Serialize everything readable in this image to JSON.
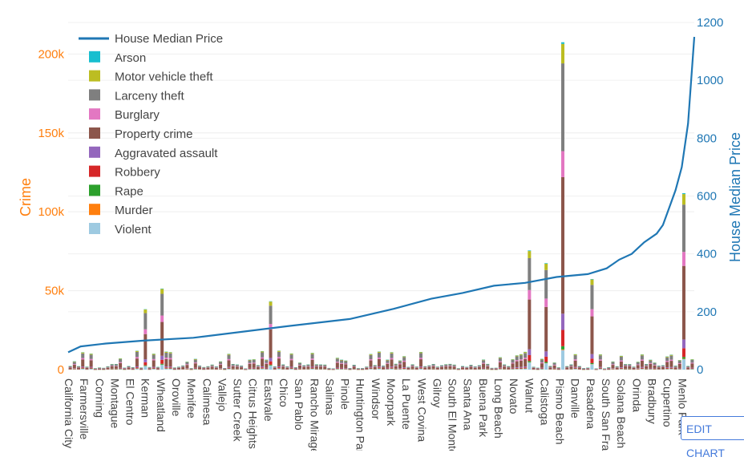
{
  "chart_data": {
    "type": "bar",
    "barmode": "stack",
    "left_axis": {
      "label": "Crime",
      "range": [
        0,
        220000
      ],
      "ticks": [
        0,
        50000,
        100000,
        150000,
        200000
      ],
      "tick_labels": [
        "0",
        "50k",
        "100k",
        "150k",
        "200k"
      ],
      "color": "#ff7f0e"
    },
    "right_axis": {
      "label": "House Median Price",
      "range": [
        0,
        1200
      ],
      "ticks": [
        0,
        200,
        400,
        600,
        800,
        1000,
        1200
      ],
      "tick_labels": [
        "0",
        "200",
        "400",
        "600",
        "800",
        "1000",
        "1200"
      ],
      "color": "#1f77b4"
    },
    "x_tick_labels": [
      "California City",
      "Farmersville",
      "Corning",
      "Montague",
      "El Centro",
      "Kerman",
      "Wheatland",
      "Oroville",
      "Menifee",
      "Calimesa",
      "Vallejo",
      "Sutter Creek",
      "Citrus Heights",
      "Eastvale",
      "Chico",
      "San Pablo",
      "Rancho Mirage",
      "Salinas",
      "Pinole",
      "Huntington Park",
      "Windsor",
      "Moorpark",
      "La Puente",
      "West Covina",
      "Gilroy",
      "South El Monte",
      "Santa Ana",
      "Buena Park",
      "Long Beach",
      "Novato",
      "Walnut",
      "Calistoga",
      "Pismo Beach",
      "Danville",
      "Pasadena",
      "South San Francisco",
      "Solana Beach",
      "Orinda",
      "Bradbury",
      "Cupertino",
      "Menlo Park"
    ],
    "legend_position": "top-left",
    "grid": true,
    "series": [
      {
        "name": "House Median Price",
        "kind": "line",
        "axis": "right",
        "color": "#1f77b4"
      },
      {
        "name": "Arson",
        "kind": "bar",
        "color": "#17becf"
      },
      {
        "name": "Motor vehicle theft",
        "kind": "bar",
        "color": "#bcbd22"
      },
      {
        "name": "Larceny theft",
        "kind": "bar",
        "color": "#7f7f7f"
      },
      {
        "name": "Burglary",
        "kind": "bar",
        "color": "#e377c2"
      },
      {
        "name": "Property crime",
        "kind": "bar",
        "color": "#8c564b"
      },
      {
        "name": "Aggravated assault",
        "kind": "bar",
        "color": "#9467bd"
      },
      {
        "name": "Robbery",
        "kind": "bar",
        "color": "#d62728"
      },
      {
        "name": "Rape",
        "kind": "bar",
        "color": "#2ca02c"
      },
      {
        "name": "Murder",
        "kind": "bar",
        "color": "#ff7f0e"
      },
      {
        "name": "Violent",
        "kind": "bar",
        "color": "#9ecae1"
      }
    ],
    "notable_bars": [
      {
        "category": "Kerman",
        "total": 38000
      },
      {
        "category": "Wheatland",
        "total": 51000
      },
      {
        "category": "Eastvale",
        "total": 43000
      },
      {
        "category": "Walnut",
        "total": 75000
      },
      {
        "category": "Calistoga",
        "total": 67000
      },
      {
        "category": "Pismo Beach",
        "total": 206000
      },
      {
        "category": "Pasadena",
        "total": 57000
      },
      {
        "category": "Menlo Park",
        "total": 111000
      }
    ],
    "house_price_line": [
      [
        0,
        60
      ],
      [
        2,
        80
      ],
      [
        6,
        90
      ],
      [
        12,
        100
      ],
      [
        20,
        110
      ],
      [
        35,
        150
      ],
      [
        45,
        175
      ],
      [
        52,
        210
      ],
      [
        58,
        245
      ],
      [
        63,
        265
      ],
      [
        68,
        290
      ],
      [
        73,
        300
      ],
      [
        78,
        320
      ],
      [
        83,
        330
      ],
      [
        86,
        350
      ],
      [
        88,
        380
      ],
      [
        90,
        400
      ],
      [
        92,
        440
      ],
      [
        94,
        470
      ],
      [
        95,
        500
      ],
      [
        96,
        560
      ],
      [
        97,
        620
      ],
      [
        98,
        700
      ],
      [
        99,
        850
      ],
      [
        100,
        1150
      ]
    ]
  },
  "edit_button": {
    "label": "EDIT CHART"
  }
}
